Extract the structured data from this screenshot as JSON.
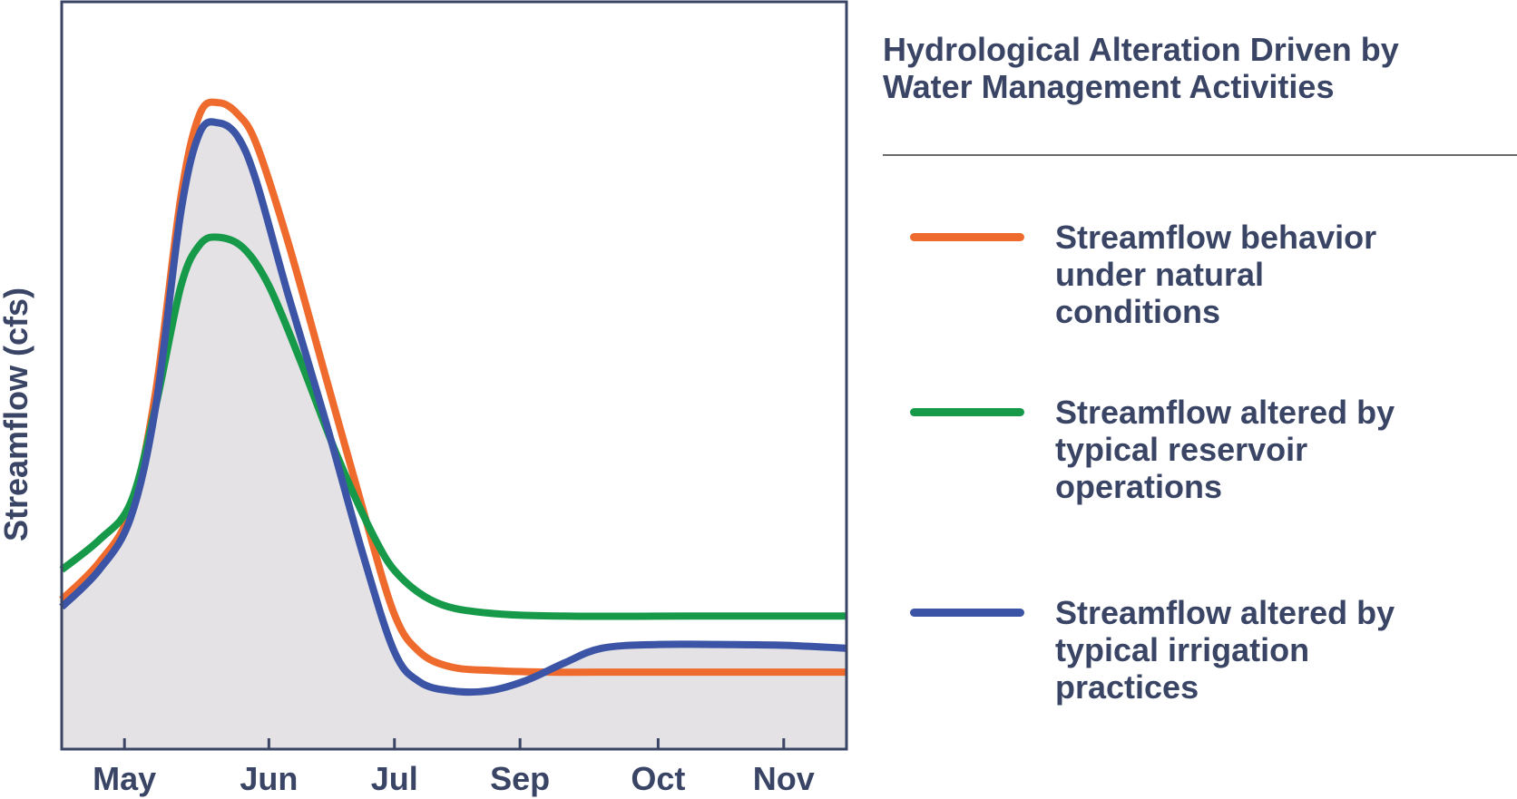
{
  "colors": {
    "natural": "#ee6b2d",
    "reservoir": "#169a4a",
    "irrigation": "#3c54a6",
    "text": "#3a4566",
    "fill": "#e4e2e4",
    "frame": "#3a4566"
  },
  "title_lines": [
    "Hydrological Alteration Driven by",
    "Water Management Activities"
  ],
  "legend": [
    {
      "key": "natural",
      "lines": [
        "Streamflow behavior",
        "under natural",
        "conditions"
      ]
    },
    {
      "key": "reservoir",
      "lines": [
        "Streamflow altered by",
        "typical reservoir",
        "operations"
      ]
    },
    {
      "key": "irrigation",
      "lines": [
        "Streamflow altered by",
        "typical irrigation",
        "practices"
      ]
    }
  ],
  "chart_data": {
    "type": "line",
    "title": "Hydrological Alteration Driven by Water Management Activities",
    "xlabel": "",
    "ylabel": "Streamflow (cfs)",
    "x_tick_labels": [
      "May",
      "Jun",
      "Jul",
      "Sep",
      "Oct",
      "Nov"
    ],
    "x_ticks": [
      0.5,
      1.65,
      2.65,
      3.65,
      4.75,
      5.75
    ],
    "xlim": [
      0,
      6.25
    ],
    "ylim": [
      0,
      100
    ],
    "y_tick_labels": [],
    "grid": false,
    "legend_position": "right",
    "shaded_area_under": "irrigation",
    "series": [
      {
        "name": "Streamflow behavior under natural conditions",
        "key": "natural",
        "points": [
          [
            0,
            20
          ],
          [
            0.3,
            25
          ],
          [
            0.55,
            32
          ],
          [
            0.75,
            48
          ],
          [
            0.95,
            74
          ],
          [
            1.1,
            85
          ],
          [
            1.25,
            86.5
          ],
          [
            1.4,
            85
          ],
          [
            1.55,
            81
          ],
          [
            1.8,
            68
          ],
          [
            2.1,
            50
          ],
          [
            2.4,
            32
          ],
          [
            2.65,
            18
          ],
          [
            2.85,
            13
          ],
          [
            3.1,
            11
          ],
          [
            3.45,
            10.5
          ],
          [
            3.9,
            10.3
          ],
          [
            4.5,
            10.3
          ],
          [
            5.5,
            10.3
          ],
          [
            6.25,
            10.3
          ]
        ]
      },
      {
        "name": "Streamflow altered by typical reservoir operations",
        "key": "reservoir",
        "points": [
          [
            0,
            24
          ],
          [
            0.3,
            28
          ],
          [
            0.55,
            33
          ],
          [
            0.75,
            46
          ],
          [
            0.95,
            62
          ],
          [
            1.1,
            67.5
          ],
          [
            1.25,
            68.5
          ],
          [
            1.45,
            67
          ],
          [
            1.65,
            62
          ],
          [
            1.9,
            52
          ],
          [
            2.2,
            39
          ],
          [
            2.5,
            28
          ],
          [
            2.7,
            23
          ],
          [
            3.0,
            19.5
          ],
          [
            3.4,
            18.2
          ],
          [
            4.0,
            17.8
          ],
          [
            5.0,
            17.8
          ],
          [
            6.25,
            17.8
          ]
        ]
      },
      {
        "name": "Streamflow altered by typical irrigation practices",
        "key": "irrigation",
        "points": [
          [
            0,
            19
          ],
          [
            0.3,
            24
          ],
          [
            0.55,
            31
          ],
          [
            0.75,
            46
          ],
          [
            0.95,
            72
          ],
          [
            1.1,
            82.5
          ],
          [
            1.25,
            83.8
          ],
          [
            1.4,
            82
          ],
          [
            1.55,
            76
          ],
          [
            1.8,
            61
          ],
          [
            2.1,
            44
          ],
          [
            2.4,
            26
          ],
          [
            2.65,
            13
          ],
          [
            2.85,
            9
          ],
          [
            3.1,
            7.8
          ],
          [
            3.4,
            7.8
          ],
          [
            3.7,
            9.2
          ],
          [
            4.0,
            11.5
          ],
          [
            4.3,
            13.5
          ],
          [
            4.75,
            14
          ],
          [
            5.25,
            14
          ],
          [
            5.75,
            13.9
          ],
          [
            6.25,
            13.5
          ]
        ]
      }
    ]
  }
}
